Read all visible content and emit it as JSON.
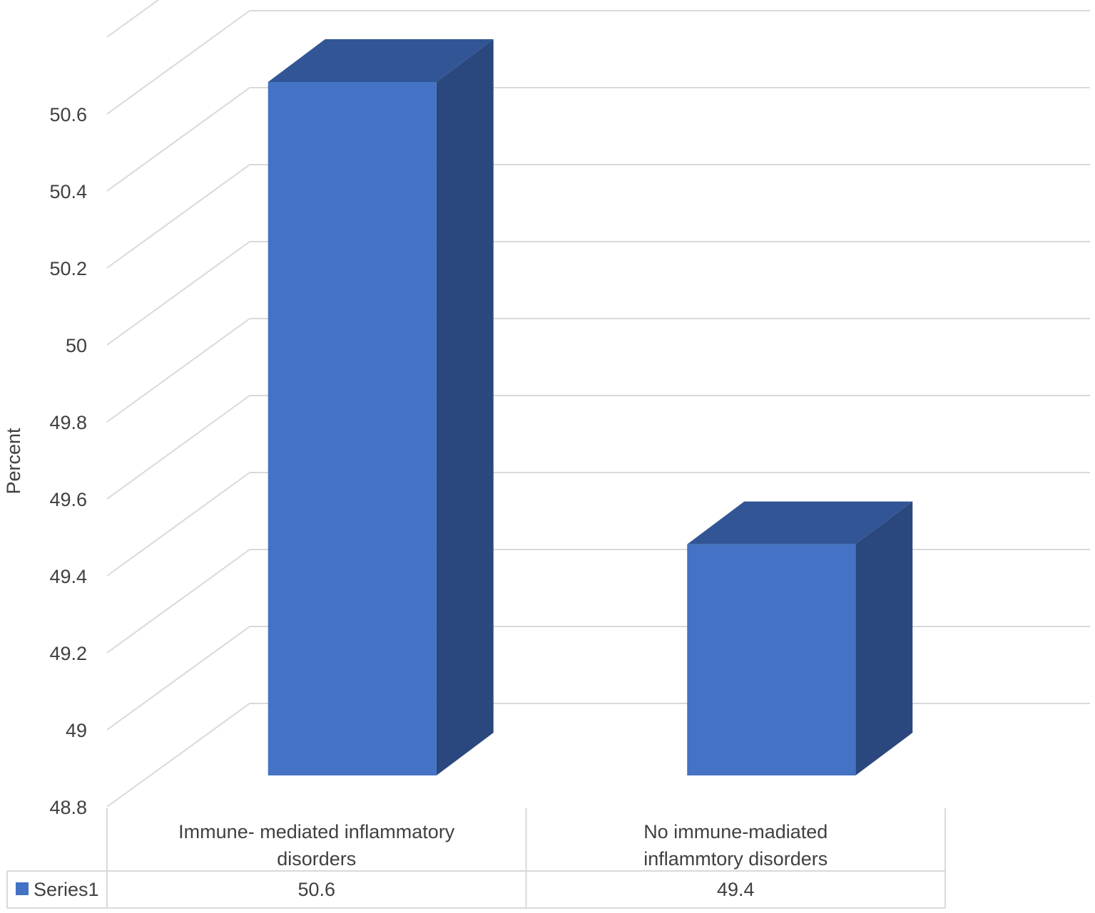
{
  "chart_data": {
    "type": "bar",
    "title": "",
    "xlabel": "",
    "ylabel": "Percent",
    "ylim": [
      48.8,
      50.6
    ],
    "yticks": [
      48.8,
      49,
      49.2,
      49.4,
      49.6,
      49.8,
      50,
      50.2,
      50.4,
      50.6
    ],
    "categories": [
      [
        "Immune- mediated inflammatory",
        "disorders"
      ],
      [
        "No immune-madiated",
        "inflammtory disorders"
      ]
    ],
    "series": [
      {
        "name": "Series1",
        "values": [
          50.6,
          49.4
        ],
        "value_labels": [
          "50.6",
          "49.4"
        ],
        "color": "#4472c4",
        "side_color": "#2a477e",
        "top_color": "#325695"
      }
    ],
    "grid": true,
    "legend": "data-table",
    "three_d": true
  }
}
